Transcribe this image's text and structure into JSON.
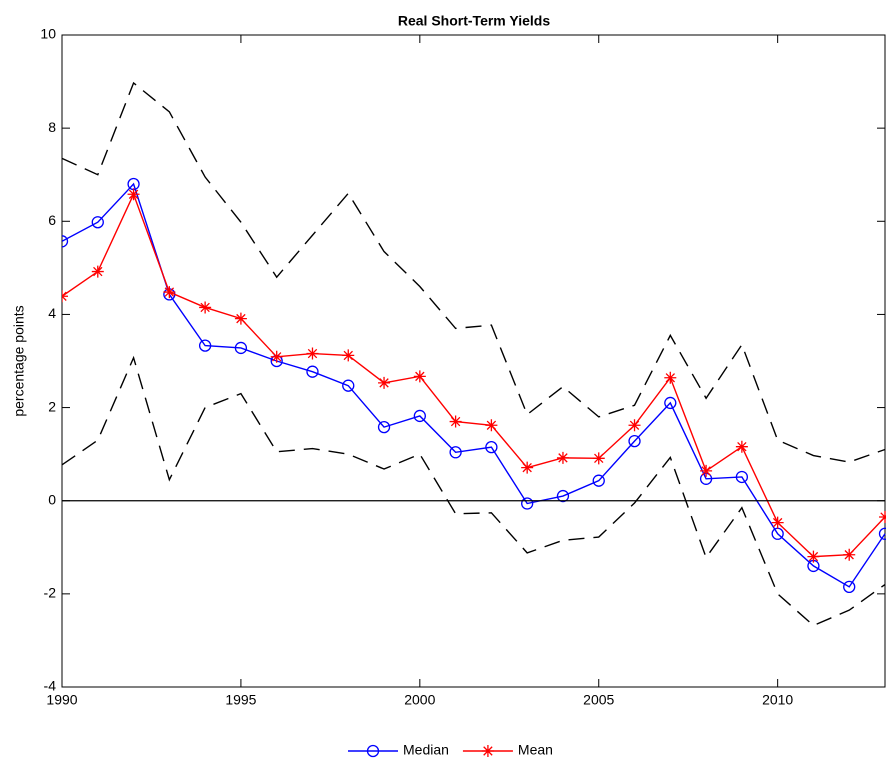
{
  "chart_data": {
    "type": "line",
    "title": "Real Short-Term Yields",
    "y_label": "percentage points",
    "x": [
      1990,
      1991,
      1992,
      1993,
      1994,
      1995,
      1996,
      1997,
      1998,
      1999,
      2000,
      2001,
      2002,
      2003,
      2004,
      2005,
      2006,
      2007,
      2008,
      2009,
      2010,
      2011,
      2012,
      2013
    ],
    "series": [
      {
        "name": "Median",
        "color": "#0000ff",
        "marker": "circle",
        "values": [
          5.57,
          5.98,
          6.8,
          4.43,
          3.33,
          3.28,
          3.0,
          2.77,
          2.47,
          1.58,
          1.82,
          1.04,
          1.15,
          -0.06,
          0.1,
          0.43,
          1.28,
          2.1,
          0.47,
          0.51,
          -0.71,
          -1.4,
          -1.85,
          -0.71
        ]
      },
      {
        "name": "Mean",
        "color": "#ff0000",
        "marker": "asterisk",
        "values": [
          4.39,
          4.92,
          6.58,
          4.48,
          4.15,
          3.91,
          3.09,
          3.16,
          3.12,
          2.53,
          2.67,
          1.7,
          1.62,
          0.71,
          0.92,
          0.91,
          1.62,
          2.64,
          0.64,
          1.16,
          -0.47,
          -1.2,
          -1.16,
          -0.35
        ]
      },
      {
        "color": "#000000",
        "dash": true,
        "values": [
          7.35,
          7.0,
          8.97,
          8.35,
          6.95,
          5.98,
          4.8,
          5.7,
          6.6,
          5.35,
          4.6,
          3.7,
          3.77,
          1.85,
          2.45,
          1.8,
          2.05,
          3.55,
          2.2,
          3.35,
          1.3,
          0.97,
          0.83,
          1.1
        ]
      },
      {
        "color": "#000000",
        "dash": true,
        "values": [
          0.77,
          1.3,
          3.07,
          0.45,
          2.0,
          2.3,
          1.05,
          1.12,
          1.0,
          0.68,
          1.0,
          -0.28,
          -0.26,
          -1.12,
          -0.85,
          -0.78,
          -0.05,
          0.93,
          -1.22,
          -0.15,
          -2.0,
          -2.68,
          -2.35,
          -1.8
        ]
      }
    ],
    "xlim": [
      1990,
      2013
    ],
    "xticks": [
      1990,
      1995,
      2000,
      2005,
      2010
    ],
    "ylim": [
      -4,
      10
    ],
    "yticks": [
      -4,
      -2,
      0,
      2,
      4,
      6,
      8,
      10
    ],
    "zero_line": true,
    "legend": "bottom"
  }
}
